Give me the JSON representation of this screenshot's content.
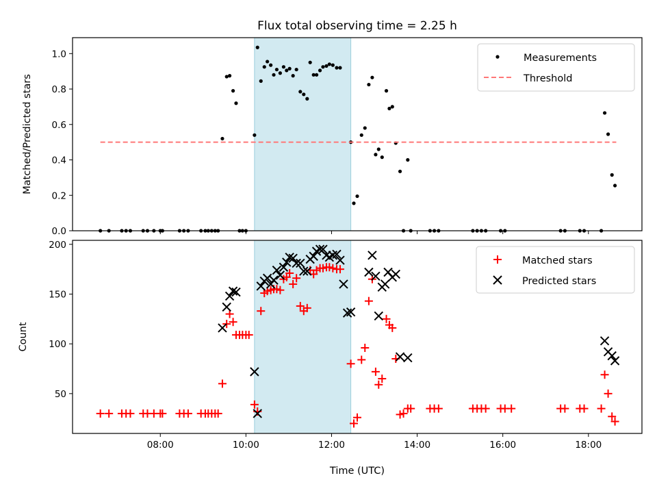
{
  "chart_data": {
    "type": "scatter",
    "title": "Flux total observing time = 2.25 h",
    "xlabel": "Time (UTC)",
    "x_ticks": [
      "08:00",
      "10:00",
      "12:00",
      "14:00",
      "16:00",
      "18:00"
    ],
    "x_tick_hours": [
      8,
      10,
      12,
      14,
      16,
      18
    ],
    "x_range_hours": [
      5.95,
      19.25
    ],
    "shaded_interval_hours": [
      10.2,
      12.45
    ],
    "shaded_color": "#add8e6",
    "panels": [
      {
        "ylabel": "Matched/Predicted stars",
        "ylim": [
          0,
          1.09
        ],
        "yticks": [
          0,
          0.2,
          0.4,
          0.6,
          0.8,
          1.0
        ],
        "ytick_labels": [
          "0.0",
          "0.2",
          "0.4",
          "0.6",
          "0.8",
          "1.0"
        ],
        "legend_position": "upper right",
        "series": [
          {
            "name": "Measurements",
            "marker": "dot",
            "color": "#000000",
            "points": [
              [
                6.6,
                0
              ],
              [
                6.8,
                0
              ],
              [
                7.1,
                0
              ],
              [
                7.2,
                0
              ],
              [
                7.3,
                0
              ],
              [
                7.6,
                0
              ],
              [
                7.7,
                0
              ],
              [
                7.85,
                0
              ],
              [
                8.0,
                0
              ],
              [
                8.05,
                0
              ],
              [
                8.45,
                0
              ],
              [
                8.55,
                0
              ],
              [
                8.65,
                0
              ],
              [
                8.95,
                0
              ],
              [
                9.05,
                0
              ],
              [
                9.12,
                0
              ],
              [
                9.2,
                0
              ],
              [
                9.28,
                0
              ],
              [
                9.35,
                0
              ],
              [
                9.45,
                0.52
              ],
              [
                9.55,
                0.87
              ],
              [
                9.62,
                0.875
              ],
              [
                9.7,
                0.79
              ],
              [
                9.77,
                0.72
              ],
              [
                9.85,
                0
              ],
              [
                9.92,
                0
              ],
              [
                10.0,
                0
              ],
              [
                10.2,
                0.54
              ],
              [
                10.27,
                1.035
              ],
              [
                10.35,
                0.845
              ],
              [
                10.43,
                0.925
              ],
              [
                10.5,
                0.955
              ],
              [
                10.58,
                0.935
              ],
              [
                10.65,
                0.88
              ],
              [
                10.72,
                0.91
              ],
              [
                10.8,
                0.89
              ],
              [
                10.88,
                0.925
              ],
              [
                10.95,
                0.905
              ],
              [
                11.02,
                0.915
              ],
              [
                11.1,
                0.875
              ],
              [
                11.18,
                0.91
              ],
              [
                11.27,
                0.785
              ],
              [
                11.35,
                0.77
              ],
              [
                11.43,
                0.745
              ],
              [
                11.5,
                0.95
              ],
              [
                11.58,
                0.88
              ],
              [
                11.65,
                0.88
              ],
              [
                11.73,
                0.905
              ],
              [
                11.8,
                0.925
              ],
              [
                11.88,
                0.93
              ],
              [
                11.95,
                0.94
              ],
              [
                12.03,
                0.935
              ],
              [
                12.12,
                0.92
              ],
              [
                12.2,
                0.92
              ],
              [
                12.45,
                0.5
              ],
              [
                12.52,
                0.155
              ],
              [
                12.6,
                0.195
              ],
              [
                12.7,
                0.54
              ],
              [
                12.78,
                0.58
              ],
              [
                12.87,
                0.825
              ],
              [
                12.95,
                0.865
              ],
              [
                13.03,
                0.43
              ],
              [
                13.1,
                0.46
              ],
              [
                13.18,
                0.415
              ],
              [
                13.28,
                0.79
              ],
              [
                13.35,
                0.69
              ],
              [
                13.42,
                0.7
              ],
              [
                13.5,
                0.495
              ],
              [
                13.6,
                0.335
              ],
              [
                13.68,
                0
              ],
              [
                13.78,
                0.4
              ],
              [
                13.85,
                0
              ],
              [
                14.3,
                0
              ],
              [
                14.4,
                0
              ],
              [
                14.5,
                0
              ],
              [
                15.3,
                0
              ],
              [
                15.4,
                0
              ],
              [
                15.5,
                0
              ],
              [
                15.6,
                0
              ],
              [
                15.95,
                0
              ],
              [
                16.05,
                0
              ],
              [
                17.35,
                0
              ],
              [
                17.45,
                0
              ],
              [
                17.8,
                0
              ],
              [
                17.9,
                0
              ],
              [
                18.3,
                0
              ],
              [
                18.38,
                0.665
              ],
              [
                18.46,
                0.545
              ],
              [
                18.55,
                0.315
              ],
              [
                18.62,
                0.255
              ]
            ]
          },
          {
            "name": "Threshold",
            "marker": "dashed-line",
            "color": "#ff7777",
            "points": [
              [
                6.6,
                0.5
              ],
              [
                18.65,
                0.5
              ]
            ]
          }
        ]
      },
      {
        "ylabel": "Count",
        "ylim": [
          10,
          204
        ],
        "yticks": [
          50,
          100,
          150,
          200
        ],
        "ytick_labels": [
          "50",
          "100",
          "150",
          "200"
        ],
        "legend_position": "upper right",
        "series": [
          {
            "name": "Matched stars",
            "marker": "plus",
            "color": "#ff0000",
            "points": [
              [
                6.6,
                30
              ],
              [
                6.8,
                30
              ],
              [
                7.1,
                30
              ],
              [
                7.2,
                30
              ],
              [
                7.3,
                30
              ],
              [
                7.6,
                30
              ],
              [
                7.7,
                30
              ],
              [
                7.85,
                30
              ],
              [
                8.0,
                30
              ],
              [
                8.05,
                30
              ],
              [
                8.45,
                30
              ],
              [
                8.55,
                30
              ],
              [
                8.65,
                30
              ],
              [
                8.95,
                30
              ],
              [
                9.05,
                30
              ],
              [
                9.12,
                30
              ],
              [
                9.2,
                30
              ],
              [
                9.28,
                30
              ],
              [
                9.35,
                30
              ],
              [
                9.45,
                60
              ],
              [
                9.55,
                120
              ],
              [
                9.62,
                130
              ],
              [
                9.7,
                122
              ],
              [
                9.77,
                109
              ],
              [
                9.85,
                109
              ],
              [
                9.92,
                109
              ],
              [
                10.0,
                109
              ],
              [
                10.07,
                109
              ],
              [
                10.2,
                39
              ],
              [
                10.27,
                32
              ],
              [
                10.35,
                133
              ],
              [
                10.43,
                151
              ],
              [
                10.5,
                153
              ],
              [
                10.58,
                154
              ],
              [
                10.65,
                155
              ],
              [
                10.72,
                155
              ],
              [
                10.8,
                154
              ],
              [
                10.88,
                165
              ],
              [
                10.95,
                167
              ],
              [
                11.02,
                171
              ],
              [
                11.1,
                160
              ],
              [
                11.18,
                166
              ],
              [
                11.27,
                138
              ],
              [
                11.35,
                133
              ],
              [
                11.43,
                136
              ],
              [
                11.5,
                174
              ],
              [
                11.58,
                170
              ],
              [
                11.65,
                174
              ],
              [
                11.73,
                176
              ],
              [
                11.8,
                176
              ],
              [
                11.88,
                177
              ],
              [
                11.95,
                177
              ],
              [
                12.03,
                176
              ],
              [
                12.12,
                175
              ],
              [
                12.2,
                175
              ],
              [
                12.45,
                80
              ],
              [
                12.52,
                20
              ],
              [
                12.6,
                26
              ],
              [
                12.7,
                84
              ],
              [
                12.78,
                96
              ],
              [
                12.87,
                143
              ],
              [
                12.95,
                165
              ],
              [
                13.03,
                72
              ],
              [
                13.1,
                59
              ],
              [
                13.18,
                65
              ],
              [
                13.28,
                125
              ],
              [
                13.35,
                119
              ],
              [
                13.42,
                116
              ],
              [
                13.5,
                85
              ],
              [
                13.6,
                29
              ],
              [
                13.68,
                30
              ],
              [
                13.78,
                35
              ],
              [
                13.85,
                35
              ],
              [
                14.3,
                35
              ],
              [
                14.4,
                35
              ],
              [
                14.5,
                35
              ],
              [
                15.3,
                35
              ],
              [
                15.4,
                35
              ],
              [
                15.5,
                35
              ],
              [
                15.6,
                35
              ],
              [
                15.95,
                35
              ],
              [
                16.05,
                35
              ],
              [
                16.2,
                35
              ],
              [
                17.35,
                35
              ],
              [
                17.45,
                35
              ],
              [
                17.8,
                35
              ],
              [
                17.9,
                35
              ],
              [
                18.3,
                35
              ],
              [
                18.38,
                69
              ],
              [
                18.46,
                50
              ],
              [
                18.55,
                27
              ],
              [
                18.62,
                22
              ]
            ]
          },
          {
            "name": "Predicted stars",
            "marker": "x",
            "color": "#000000",
            "points": [
              [
                9.45,
                116
              ],
              [
                9.55,
                137
              ],
              [
                9.62,
                148
              ],
              [
                9.7,
                153
              ],
              [
                9.77,
                152
              ],
              [
                10.2,
                72
              ],
              [
                10.27,
                30
              ],
              [
                10.35,
                158
              ],
              [
                10.43,
                163
              ],
              [
                10.5,
                166
              ],
              [
                10.58,
                160
              ],
              [
                10.65,
                164
              ],
              [
                10.72,
                174
              ],
              [
                10.8,
                169
              ],
              [
                10.88,
                177
              ],
              [
                10.95,
                182
              ],
              [
                11.02,
                187
              ],
              [
                11.1,
                186
              ],
              [
                11.18,
                181
              ],
              [
                11.27,
                181
              ],
              [
                11.35,
                173
              ],
              [
                11.43,
                173
              ],
              [
                11.5,
                185
              ],
              [
                11.58,
                188
              ],
              [
                11.65,
                193
              ],
              [
                11.73,
                195
              ],
              [
                11.8,
                195
              ],
              [
                11.88,
                189
              ],
              [
                11.95,
                187
              ],
              [
                12.03,
                189
              ],
              [
                12.12,
                190
              ],
              [
                12.2,
                184
              ],
              [
                12.28,
                160
              ],
              [
                12.37,
                131
              ],
              [
                12.45,
                132
              ],
              [
                12.87,
                172
              ],
              [
                12.95,
                189
              ],
              [
                13.03,
                168
              ],
              [
                13.1,
                128
              ],
              [
                13.18,
                157
              ],
              [
                13.25,
                160
              ],
              [
                13.32,
                172
              ],
              [
                13.42,
                167
              ],
              [
                13.5,
                170
              ],
              [
                13.6,
                87
              ],
              [
                13.78,
                86
              ],
              [
                18.38,
                103
              ],
              [
                18.46,
                92
              ],
              [
                18.55,
                88
              ],
              [
                18.62,
                83
              ]
            ]
          }
        ]
      }
    ]
  }
}
